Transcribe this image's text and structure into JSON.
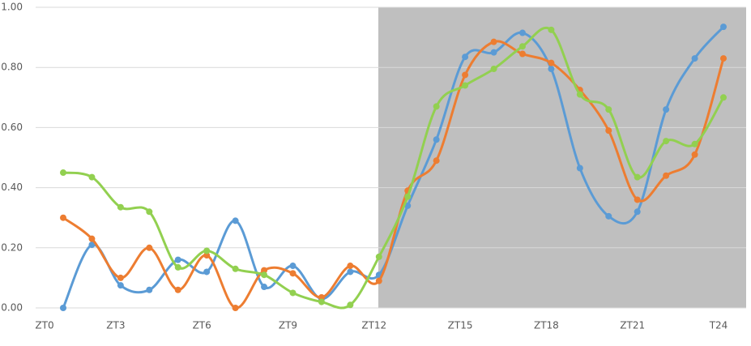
{
  "chart_data": {
    "type": "line",
    "categories": [
      "ZT0",
      null,
      "ZT3",
      null,
      null,
      "ZT6",
      null,
      null,
      "ZT9",
      null,
      null,
      "ZT12",
      null,
      null,
      "ZT15",
      null,
      null,
      "ZT18",
      null,
      null,
      "ZT21",
      null,
      null,
      "T24"
    ],
    "series": [
      {
        "color": "#5b9bd5",
        "values": [
          0.0,
          0.21,
          0.075,
          0.06,
          0.16,
          0.12,
          0.29,
          0.07,
          0.14,
          0.03,
          0.12,
          0.11,
          0.34,
          0.56,
          0.835,
          0.85,
          0.915,
          0.795,
          0.465,
          0.305,
          0.32,
          0.66,
          0.83,
          0.935
        ]
      },
      {
        "color": "#ed7d31",
        "values": [
          0.3,
          0.23,
          0.1,
          0.2,
          0.06,
          0.175,
          0.0,
          0.125,
          0.115,
          0.035,
          0.14,
          0.09,
          0.39,
          0.49,
          0.775,
          0.885,
          0.845,
          0.815,
          0.725,
          0.59,
          0.36,
          0.44,
          0.51,
          0.83
        ]
      },
      {
        "color": "#92d050",
        "values": [
          0.45,
          0.435,
          0.335,
          0.32,
          0.135,
          0.19,
          0.13,
          0.11,
          0.05,
          0.02,
          0.01,
          0.17,
          0.37,
          0.67,
          0.74,
          0.795,
          0.87,
          0.925,
          0.71,
          0.66,
          0.435,
          0.555,
          0.545,
          0.7
        ]
      }
    ],
    "ylim": [
      0,
      1
    ],
    "yticks": [
      {
        "value": 0,
        "label": "0.00"
      },
      {
        "value": 0.2,
        "label": "0.20"
      },
      {
        "value": 0.4,
        "label": "0.40"
      },
      {
        "value": 0.6,
        "label": "0.60"
      },
      {
        "value": 0.8,
        "label": "0.80"
      },
      {
        "value": 1,
        "label": "1.00"
      }
    ],
    "grid": true,
    "smooth": true
  }
}
